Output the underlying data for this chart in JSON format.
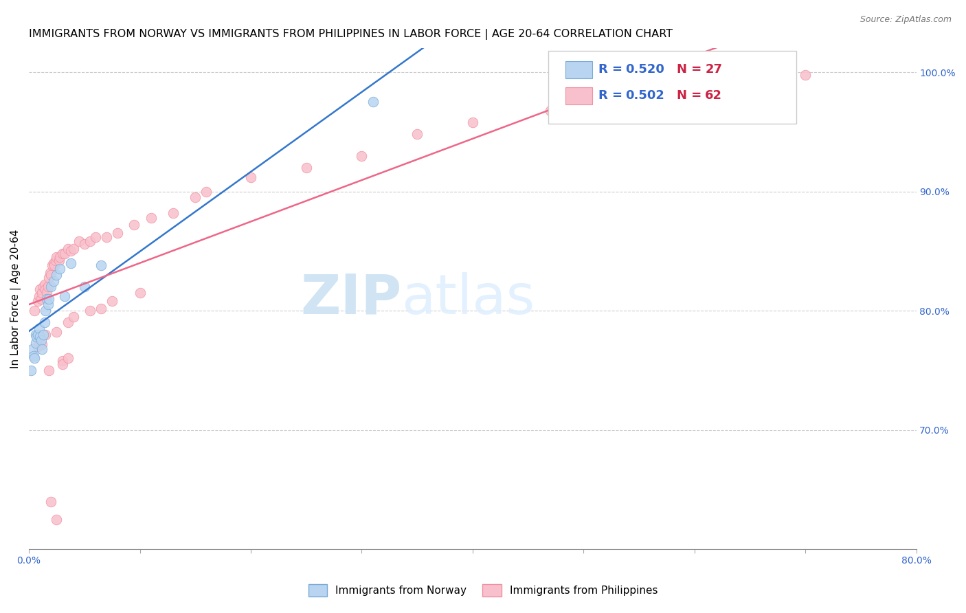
{
  "title": "IMMIGRANTS FROM NORWAY VS IMMIGRANTS FROM PHILIPPINES IN LABOR FORCE | AGE 20-64 CORRELATION CHART",
  "source": "Source: ZipAtlas.com",
  "ylabel": "In Labor Force | Age 20-64",
  "xlim": [
    0.0,
    0.8
  ],
  "ylim": [
    0.6,
    1.02
  ],
  "xtick_positions": [
    0.0,
    0.1,
    0.2,
    0.3,
    0.4,
    0.5,
    0.6,
    0.7,
    0.8
  ],
  "xtick_labels": [
    "0.0%",
    "",
    "",
    "",
    "",
    "",
    "",
    "",
    "80.0%"
  ],
  "yticks_right": [
    0.7,
    0.8,
    0.9,
    1.0
  ],
  "ytick_labels_right": [
    "70.0%",
    "80.0%",
    "90.0%",
    "100.0%"
  ],
  "norway_color": "#b8d4f0",
  "norway_edge": "#7aaad8",
  "philippines_color": "#f8c0cc",
  "philippines_edge": "#f090a0",
  "norway_line_color": "#3377cc",
  "philippines_line_color": "#ee6688",
  "norway_R": 0.52,
  "norway_N": 27,
  "philippines_R": 0.502,
  "philippines_N": 62,
  "legend_R_color": "#3366cc",
  "legend_N_color": "#cc2244",
  "watermark_zip": "ZIP",
  "watermark_atlas": "atlas",
  "watermark_color": "#d0e4f4",
  "norway_x": [
    0.002,
    0.003,
    0.004,
    0.005,
    0.006,
    0.006,
    0.007,
    0.008,
    0.009,
    0.01,
    0.011,
    0.012,
    0.013,
    0.014,
    0.015,
    0.016,
    0.017,
    0.018,
    0.02,
    0.022,
    0.025,
    0.028,
    0.032,
    0.038,
    0.05,
    0.065,
    0.31
  ],
  "norway_y": [
    0.75,
    0.768,
    0.762,
    0.76,
    0.773,
    0.78,
    0.778,
    0.78,
    0.785,
    0.778,
    0.775,
    0.768,
    0.78,
    0.79,
    0.8,
    0.81,
    0.805,
    0.81,
    0.82,
    0.825,
    0.83,
    0.835,
    0.812,
    0.84,
    0.82,
    0.838,
    0.975
  ],
  "philippines_x": [
    0.005,
    0.008,
    0.009,
    0.01,
    0.011,
    0.012,
    0.013,
    0.014,
    0.015,
    0.016,
    0.017,
    0.018,
    0.019,
    0.02,
    0.021,
    0.022,
    0.023,
    0.024,
    0.025,
    0.027,
    0.028,
    0.03,
    0.032,
    0.035,
    0.038,
    0.04,
    0.045,
    0.05,
    0.055,
    0.06,
    0.07,
    0.08,
    0.095,
    0.11,
    0.13,
    0.15,
    0.16,
    0.2,
    0.25,
    0.3,
    0.35,
    0.4,
    0.47,
    0.55,
    0.6,
    0.7,
    0.015,
    0.025,
    0.035,
    0.04,
    0.055,
    0.065,
    0.075,
    0.1,
    0.03,
    0.018,
    0.012,
    0.008,
    0.02,
    0.025,
    0.03,
    0.035
  ],
  "philippines_y": [
    0.8,
    0.808,
    0.812,
    0.818,
    0.81,
    0.815,
    0.82,
    0.822,
    0.818,
    0.815,
    0.82,
    0.828,
    0.832,
    0.83,
    0.838,
    0.84,
    0.838,
    0.842,
    0.845,
    0.842,
    0.845,
    0.848,
    0.848,
    0.852,
    0.85,
    0.852,
    0.858,
    0.856,
    0.858,
    0.862,
    0.862,
    0.865,
    0.872,
    0.878,
    0.882,
    0.895,
    0.9,
    0.912,
    0.92,
    0.93,
    0.948,
    0.958,
    0.968,
    0.985,
    0.992,
    0.998,
    0.78,
    0.782,
    0.79,
    0.795,
    0.8,
    0.802,
    0.808,
    0.815,
    0.758,
    0.75,
    0.772,
    0.77,
    0.64,
    0.625,
    0.755,
    0.76
  ],
  "title_fontsize": 11.5,
  "source_fontsize": 9,
  "ylabel_fontsize": 11,
  "tick_fontsize": 10,
  "legend_fontsize": 13
}
